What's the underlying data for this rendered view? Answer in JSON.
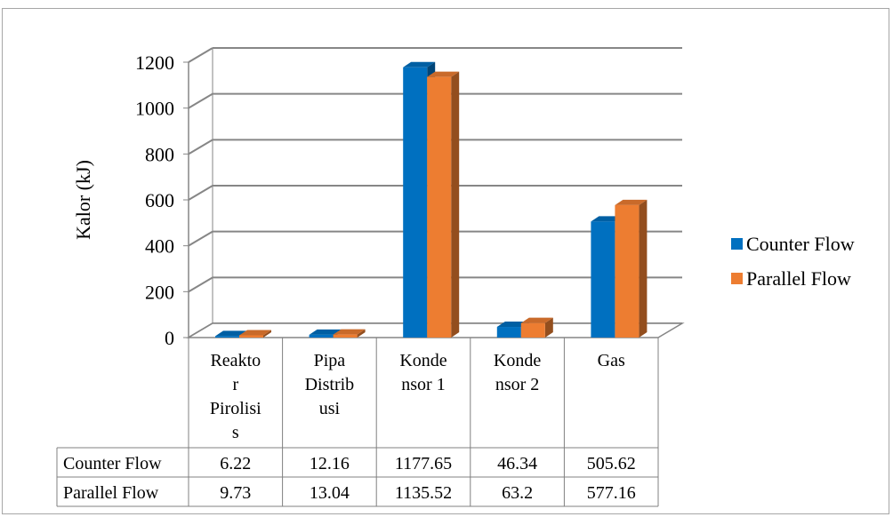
{
  "chart_data": {
    "type": "bar",
    "title": "",
    "xlabel": "",
    "ylabel": "Kalor (kJ)",
    "ylim": [
      0,
      1200
    ],
    "yticks": [
      0,
      200,
      400,
      600,
      800,
      1000,
      1200
    ],
    "grid": true,
    "legend_position": "right",
    "categories": [
      [
        "Reakto",
        "r",
        "Pirolisi",
        "s"
      ],
      [
        "Pipa",
        "Distrib",
        "usi"
      ],
      [
        "Konde",
        "nsor 1"
      ],
      [
        "Konde",
        "nsor 2"
      ],
      [
        "Gas"
      ]
    ],
    "series": [
      {
        "name": "Counter Flow",
        "color": "#0070c0",
        "values": [
          6.22,
          12.16,
          1177.65,
          46.34,
          505.62
        ],
        "labels": [
          "6.22",
          "12.16",
          "1177.65",
          "46.34",
          "505.62"
        ]
      },
      {
        "name": "Parallel Flow",
        "color": "#ed7d31",
        "values": [
          9.73,
          13.04,
          1135.52,
          63.2,
          577.16
        ],
        "labels": [
          "9.73",
          "13.04",
          "1135.52",
          "63.2",
          "577.16"
        ]
      }
    ]
  }
}
